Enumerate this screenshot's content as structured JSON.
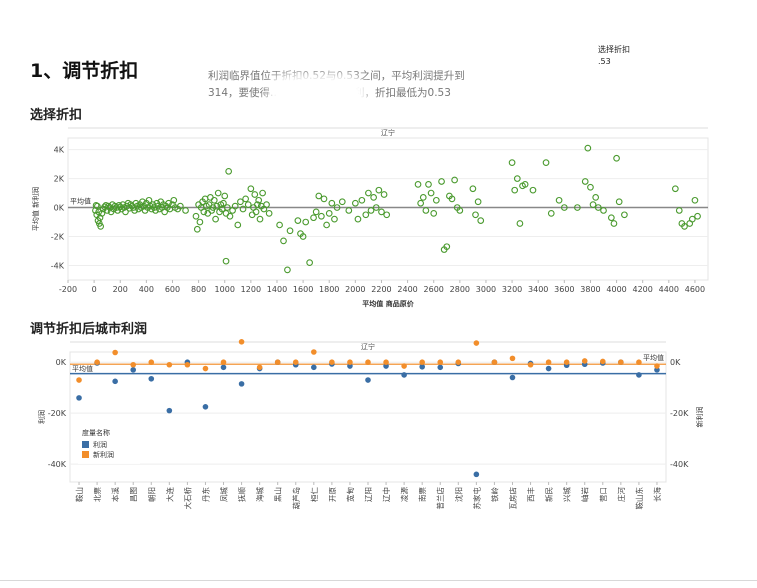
{
  "heading": "1、调节折扣",
  "note": "利润临界值位于折扣0.52与0.53之间，平均利润提升到314，要使得…利润提高且为盈利，折扣最低为0.53",
  "parameter": {
    "label": "选择折扣",
    "value": ".53"
  },
  "section1_title": "选择折扣",
  "section2_title": "调节折扣后城市利润",
  "colors": {
    "green": "#4a9a2e",
    "blue": "#3a6ea5",
    "orange": "#f28e2b",
    "ref": "#999999"
  },
  "chart_data": [
    {
      "type": "scatter",
      "panel_title": "辽宁",
      "xlabel": "平均值 商品原价",
      "ylabel": "平均值 新利润",
      "reference_line": {
        "label": "平均值",
        "value": 0
      },
      "xlim": [
        -200,
        4700
      ],
      "ylim": [
        -5000,
        4800
      ],
      "x_ticks": [
        -200,
        0,
        200,
        400,
        600,
        800,
        1000,
        1200,
        1400,
        1600,
        1800,
        2000,
        2200,
        2400,
        2600,
        2800,
        3000,
        3200,
        3400,
        3600,
        3800,
        4000,
        4200,
        4400,
        4600
      ],
      "y_ticks": [
        {
          "v": 4000,
          "l": "4K"
        },
        {
          "v": 2000,
          "l": "2K"
        },
        {
          "v": 0,
          "l": "0K"
        },
        {
          "v": -2000,
          "l": "-2K"
        },
        {
          "v": -4000,
          "l": "-4K"
        }
      ],
      "points": [
        [
          10,
          -200
        ],
        [
          20,
          -500
        ],
        [
          30,
          -900
        ],
        [
          40,
          -1100
        ],
        [
          50,
          -1300
        ],
        [
          15,
          150
        ],
        [
          25,
          100
        ],
        [
          35,
          -300
        ],
        [
          45,
          -700
        ],
        [
          60,
          -400
        ],
        [
          70,
          -100
        ],
        [
          80,
          50
        ],
        [
          90,
          150
        ],
        [
          100,
          -200
        ],
        [
          110,
          100
        ],
        [
          120,
          0
        ],
        [
          130,
          -300
        ],
        [
          140,
          200
        ],
        [
          150,
          -100
        ],
        [
          160,
          100
        ],
        [
          170,
          0
        ],
        [
          180,
          -200
        ],
        [
          190,
          150
        ],
        [
          200,
          50
        ],
        [
          210,
          -100
        ],
        [
          220,
          200
        ],
        [
          230,
          0
        ],
        [
          240,
          -300
        ],
        [
          250,
          100
        ],
        [
          260,
          300
        ],
        [
          270,
          -50
        ],
        [
          280,
          200
        ],
        [
          290,
          100
        ],
        [
          300,
          0
        ],
        [
          310,
          -200
        ],
        [
          320,
          300
        ],
        [
          330,
          100
        ],
        [
          340,
          -100
        ],
        [
          350,
          200
        ],
        [
          360,
          0
        ],
        [
          370,
          400
        ],
        [
          380,
          100
        ],
        [
          390,
          -200
        ],
        [
          400,
          300
        ],
        [
          410,
          0
        ],
        [
          420,
          500
        ],
        [
          430,
          100
        ],
        [
          440,
          -100
        ],
        [
          450,
          200
        ],
        [
          460,
          0
        ],
        [
          470,
          -200
        ],
        [
          480,
          300
        ],
        [
          490,
          100
        ],
        [
          500,
          -100
        ],
        [
          510,
          400
        ],
        [
          520,
          0
        ],
        [
          530,
          200
        ],
        [
          540,
          -300
        ],
        [
          550,
          100
        ],
        [
          560,
          0
        ],
        [
          570,
          300
        ],
        [
          580,
          -100
        ],
        [
          600,
          200
        ],
        [
          610,
          500
        ],
        [
          620,
          0
        ],
        [
          640,
          -100
        ],
        [
          660,
          100
        ],
        [
          700,
          -200
        ],
        [
          780,
          -600
        ],
        [
          790,
          -1500
        ],
        [
          800,
          200
        ],
        [
          810,
          -1000
        ],
        [
          820,
          0
        ],
        [
          830,
          400
        ],
        [
          840,
          -300
        ],
        [
          850,
          600
        ],
        [
          860,
          100
        ],
        [
          870,
          -400
        ],
        [
          880,
          200
        ],
        [
          890,
          700
        ],
        [
          900,
          -200
        ],
        [
          910,
          0
        ],
        [
          920,
          500
        ],
        [
          930,
          -800
        ],
        [
          940,
          100
        ],
        [
          950,
          1000
        ],
        [
          960,
          -300
        ],
        [
          970,
          200
        ],
        [
          980,
          -100
        ],
        [
          990,
          300
        ],
        [
          1000,
          800
        ],
        [
          1010,
          -400
        ],
        [
          1020,
          0
        ],
        [
          1030,
          2500
        ],
        [
          1040,
          -600
        ],
        [
          1060,
          -200
        ],
        [
          1080,
          100
        ],
        [
          1100,
          -1200
        ],
        [
          1120,
          400
        ],
        [
          1140,
          -100
        ],
        [
          1160,
          600
        ],
        [
          1180,
          200
        ],
        [
          1200,
          1300
        ],
        [
          1210,
          -500
        ],
        [
          1220,
          0
        ],
        [
          1230,
          900
        ],
        [
          1240,
          -300
        ],
        [
          1250,
          200
        ],
        [
          1260,
          500
        ],
        [
          1270,
          -800
        ],
        [
          1280,
          100
        ],
        [
          1290,
          1000
        ],
        [
          1300,
          -100
        ],
        [
          1320,
          200
        ],
        [
          1340,
          -400
        ],
        [
          1010,
          -3700
        ],
        [
          1420,
          -1200
        ],
        [
          1450,
          -2300
        ],
        [
          1480,
          -4300
        ],
        [
          1500,
          -1600
        ],
        [
          1560,
          -900
        ],
        [
          1580,
          -1800
        ],
        [
          1600,
          -2000
        ],
        [
          1620,
          -1000
        ],
        [
          1650,
          -3800
        ],
        [
          1680,
          -700
        ],
        [
          1700,
          -300
        ],
        [
          1720,
          800
        ],
        [
          1740,
          -600
        ],
        [
          1760,
          600
        ],
        [
          1780,
          -1200
        ],
        [
          1800,
          -400
        ],
        [
          1820,
          300
        ],
        [
          1840,
          -800
        ],
        [
          1860,
          0
        ],
        [
          1900,
          400
        ],
        [
          1950,
          -200
        ],
        [
          2000,
          300
        ],
        [
          2020,
          -800
        ],
        [
          2050,
          500
        ],
        [
          2080,
          -500
        ],
        [
          2100,
          1000
        ],
        [
          2120,
          -200
        ],
        [
          2140,
          700
        ],
        [
          2160,
          0
        ],
        [
          2180,
          1200
        ],
        [
          2200,
          -300
        ],
        [
          2220,
          900
        ],
        [
          2240,
          -500
        ],
        [
          2480,
          1600
        ],
        [
          2500,
          300
        ],
        [
          2520,
          700
        ],
        [
          2540,
          -200
        ],
        [
          2560,
          1600
        ],
        [
          2580,
          1000
        ],
        [
          2600,
          -400
        ],
        [
          2620,
          500
        ],
        [
          2660,
          1800
        ],
        [
          2680,
          -2900
        ],
        [
          2700,
          -2700
        ],
        [
          2720,
          800
        ],
        [
          2740,
          600
        ],
        [
          2760,
          1900
        ],
        [
          2780,
          0
        ],
        [
          2800,
          -200
        ],
        [
          2900,
          1300
        ],
        [
          2920,
          -500
        ],
        [
          2940,
          400
        ],
        [
          2960,
          -900
        ],
        [
          3200,
          3100
        ],
        [
          3220,
          1200
        ],
        [
          3240,
          2000
        ],
        [
          3260,
          -1100
        ],
        [
          3280,
          1500
        ],
        [
          3300,
          1600
        ],
        [
          3360,
          1200
        ],
        [
          3460,
          3100
        ],
        [
          3500,
          -400
        ],
        [
          3560,
          500
        ],
        [
          3600,
          0
        ],
        [
          3700,
          0
        ],
        [
          3760,
          1800
        ],
        [
          3780,
          4100
        ],
        [
          3800,
          1400
        ],
        [
          3820,
          200
        ],
        [
          3840,
          700
        ],
        [
          3860,
          0
        ],
        [
          3900,
          -200
        ],
        [
          3960,
          -700
        ],
        [
          3980,
          -1100
        ],
        [
          4000,
          3400
        ],
        [
          4020,
          400
        ],
        [
          4060,
          -500
        ],
        [
          4450,
          1300
        ],
        [
          4480,
          -200
        ],
        [
          4500,
          -1100
        ],
        [
          4520,
          -1300
        ],
        [
          4560,
          -1100
        ],
        [
          4580,
          -800
        ],
        [
          4600,
          500
        ],
        [
          4620,
          -600
        ]
      ]
    },
    {
      "type": "dual-axis-dot",
      "panel_title": "辽宁",
      "ylabel_left": "利润",
      "ylabel_right": "新利润",
      "reference_label": "平均值",
      "ylim": [
        -47000,
        4000
      ],
      "y_ticks": [
        {
          "v": 0,
          "l": "0K"
        },
        {
          "v": -20000,
          "l": "-20K"
        },
        {
          "v": -40000,
          "l": "-40K"
        }
      ],
      "legend": {
        "title": "度量名称",
        "items": [
          "利润",
          "新利润"
        ]
      },
      "series": [
        {
          "name": "利润",
          "values": [
            -14000,
            -300,
            -7500,
            -3000,
            -6500,
            -19000,
            0,
            -17500,
            -2000,
            -8500,
            -2500,
            0,
            -1000,
            -2000,
            -700,
            -1500,
            -7000,
            -1500,
            -5000,
            -1800,
            -2000,
            -500,
            -44000,
            0,
            -6000,
            -500,
            -2500,
            -1200,
            -800,
            -300,
            0,
            -5000,
            -3000
          ]
        },
        {
          "name": "新利润",
          "values": [
            -7000,
            0,
            3800,
            -1000,
            0,
            -1000,
            -1000,
            -2500,
            0,
            8000,
            -2000,
            0,
            0,
            4000,
            0,
            0,
            0,
            0,
            -1500,
            0,
            0,
            0,
            7500,
            0,
            1500,
            -1000,
            0,
            0,
            500,
            300,
            0,
            0,
            -1500
          ]
        }
      ],
      "reference_values": {
        "利润": -4500,
        "新利润": -800
      },
      "categories": [
        "鞍山",
        "北票",
        "本溪",
        "昌图",
        "朝阳",
        "大连",
        "大石桥",
        "丹东",
        "凤城",
        "抚顺",
        "海城",
        "黑山",
        "葫芦岛",
        "桓仁",
        "开原",
        "宽甸",
        "辽阳",
        "辽中",
        "凌源",
        "南票",
        "普兰店",
        "沈阳",
        "苏家屯",
        "铁岭",
        "瓦房店",
        "西丰",
        "新民",
        "兴城",
        "岫岩",
        "营口",
        "庄河",
        "鞍山东",
        "长海"
      ]
    }
  ]
}
